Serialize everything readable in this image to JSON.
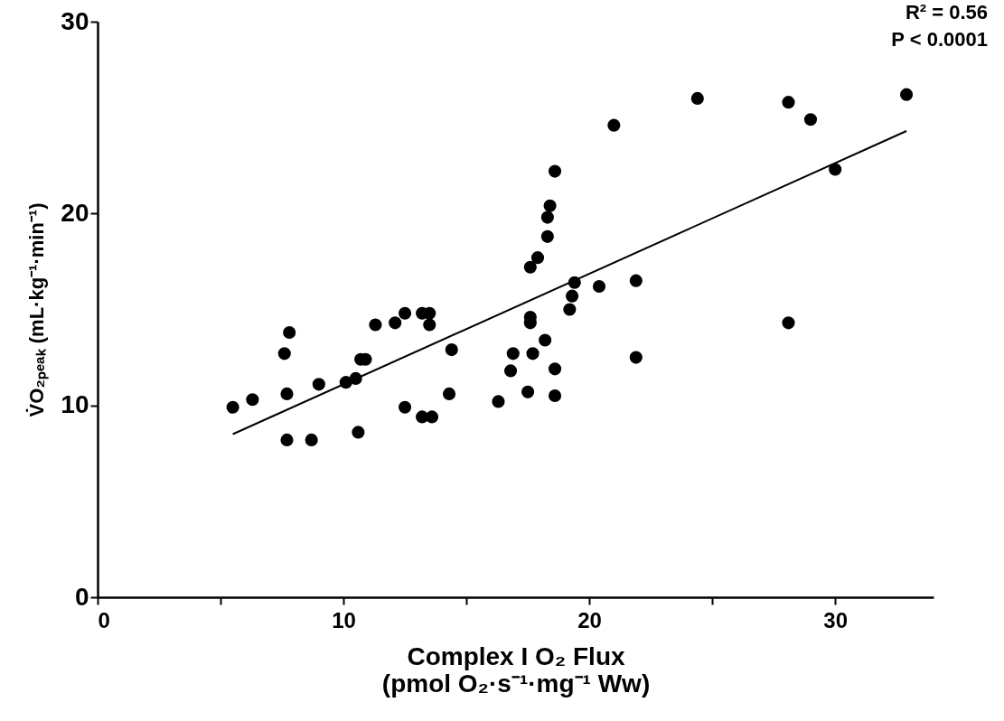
{
  "chart_data": {
    "type": "scatter",
    "xlabel": "Complex I O₂ Flux\n(pmol O₂·s⁻¹·mg⁻¹ Ww)",
    "ylabel": "V̇O₂ₚₑₐₖ (mL·kg⁻¹·min⁻¹)",
    "annotations": [
      "R² = 0.56",
      "P < 0.0001"
    ],
    "xlim": [
      0,
      34
    ],
    "ylim": [
      0,
      30
    ],
    "xticks": [
      0,
      {
        "value": 5,
        "label": null
      },
      10,
      {
        "value": 15,
        "label": null
      },
      20,
      {
        "value": 25,
        "label": null
      },
      30
    ],
    "yticks": [
      0,
      10,
      20,
      30
    ],
    "grid": false,
    "marker": "circle",
    "series": [
      {
        "type": "scatter",
        "color": "#000000",
        "x": [
          5.5,
          6.3,
          7.8,
          7.6,
          7.7,
          7.7,
          8.7,
          9.0,
          10.1,
          10.5,
          10.6,
          10.7,
          10.9,
          11.3,
          12.1,
          12.5,
          13.2,
          13.5,
          13.5,
          14.4,
          14.3,
          12.5,
          13.2,
          13.6,
          18.6,
          18.4,
          18.3,
          18.3,
          17.9,
          17.6,
          19.4,
          19.3,
          19.2,
          20.4,
          21.9,
          21.9,
          17.6,
          17.6,
          18.2,
          16.9,
          17.7,
          16.8,
          18.6,
          17.5,
          18.6,
          16.3,
          24.4,
          28.1,
          29.0,
          32.9,
          30.0,
          28.1,
          21.0
        ],
        "values": [
          9.9,
          10.3,
          13.8,
          12.7,
          10.6,
          8.2,
          8.2,
          11.1,
          11.2,
          11.4,
          8.6,
          12.4,
          12.4,
          14.2,
          14.3,
          14.8,
          14.8,
          14.8,
          14.2,
          12.9,
          10.6,
          9.9,
          9.4,
          9.4,
          22.2,
          20.4,
          19.8,
          18.8,
          17.7,
          17.2,
          16.4,
          15.7,
          15.0,
          16.2,
          16.5,
          12.5,
          14.6,
          14.3,
          13.4,
          12.7,
          12.7,
          11.8,
          11.9,
          10.7,
          10.5,
          10.2,
          26.0,
          25.8,
          24.9,
          26.2,
          22.3,
          14.3,
          24.6
        ]
      },
      {
        "type": "line",
        "color": "#000000",
        "marker": "none",
        "x": [
          5.5,
          32.9
        ],
        "values": [
          8.5,
          24.3
        ]
      }
    ]
  }
}
